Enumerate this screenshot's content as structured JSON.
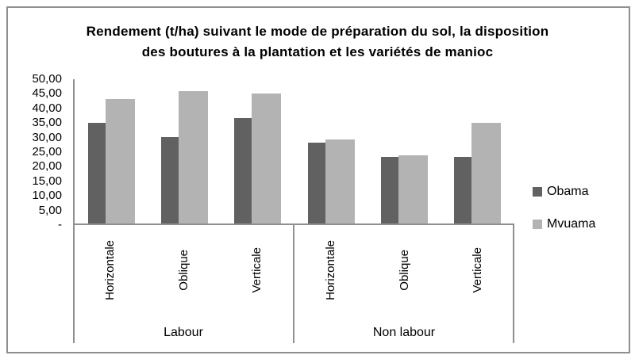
{
  "frame": {
    "border_color": "#8f8f8f"
  },
  "chart_data": {
    "type": "bar",
    "title": "Rendement (t/ha) suivant le mode de préparation du sol, la disposition des boutures à la plantation et les variétés de manioc",
    "title_lines": [
      "Rendement (t/ha) suivant le mode de préparation du sol, la disposition",
      "des boutures à la plantation et les variétés de manioc"
    ],
    "ylabel": "",
    "xlabel": "",
    "ylim": [
      0,
      50
    ],
    "ytick_step": 5,
    "yaxis_labels": [
      "50,00",
      "45,00",
      "40,00",
      "35,00",
      "30,00",
      "25,00",
      "20,00",
      "15,00",
      "10,00",
      "5,00",
      "-"
    ],
    "grid": false,
    "legend_position": "right",
    "groups": [
      {
        "label": "Labour",
        "categories": [
          "Horizontale",
          "Oblique",
          "Verticale"
        ]
      },
      {
        "label": "Non labour",
        "categories": [
          "Horizontale",
          "Oblique",
          "Verticale"
        ]
      }
    ],
    "series": [
      {
        "name": "Obama",
        "color": "#616161",
        "values": [
          35,
          30,
          36.5,
          28,
          23,
          23
        ]
      },
      {
        "name": "Mvuama",
        "color": "#b3b3b3",
        "values": [
          43,
          46,
          45,
          29,
          23.5,
          35
        ]
      }
    ],
    "axis_color": "#8f8f8f"
  }
}
